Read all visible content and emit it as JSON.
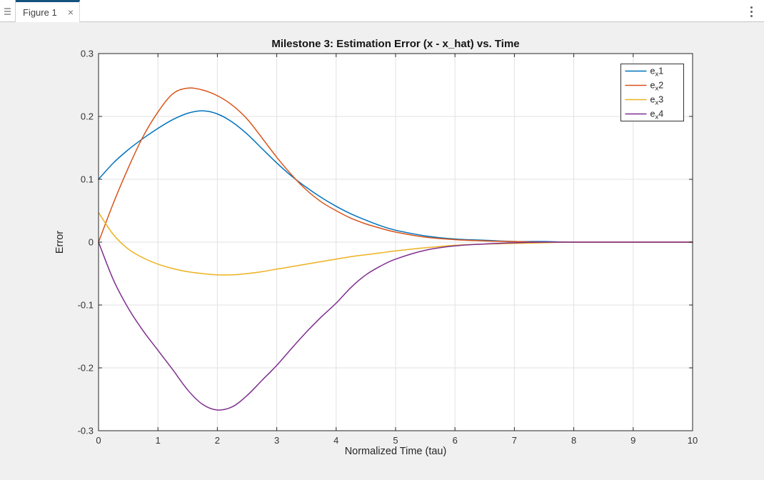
{
  "window": {
    "tab_title": "Figure 1",
    "close_glyph": "×",
    "panel_handle_icon": "panel-handle",
    "menu_icon": "kebab-menu"
  },
  "colors": {
    "tab_accent": "#15517d",
    "figure_background": "#f0f0f0",
    "axes_background": "#ffffff",
    "axis_color": "#262626",
    "grid_color": "#e2e2e2"
  },
  "chart_data": {
    "type": "line",
    "title": "Milestone 3: Estimation Error (x - x_hat) vs. Time",
    "xlabel": "Normalized Time (tau)",
    "ylabel": "Error",
    "xlim": [
      0,
      10
    ],
    "ylim": [
      -0.3,
      0.3
    ],
    "xtick_values": [
      0,
      1,
      2,
      3,
      4,
      5,
      6,
      7,
      8,
      9,
      10
    ],
    "xtick_labels": [
      "0",
      "1",
      "2",
      "3",
      "4",
      "5",
      "6",
      "7",
      "8",
      "9",
      "10"
    ],
    "ytick_values": [
      0.3,
      0.2,
      0.1,
      0,
      -0.1,
      -0.2,
      -0.3
    ],
    "ytick_labels": [
      "0.3",
      "0.2",
      "0.1",
      "0",
      "-0.1",
      "-0.2",
      "-0.3"
    ],
    "grid": true,
    "legend_position": "top-right",
    "x": [
      0,
      0.25,
      0.5,
      0.75,
      1,
      1.25,
      1.5,
      1.75,
      2,
      2.25,
      2.5,
      2.75,
      3,
      3.25,
      3.5,
      3.75,
      4,
      4.25,
      4.5,
      4.75,
      5,
      5.5,
      6,
      6.5,
      7,
      7.5,
      8,
      9,
      10
    ],
    "series": [
      {
        "name": "e_x1",
        "color": "#0072BD",
        "values": [
          0.1,
          0.126,
          0.147,
          0.165,
          0.181,
          0.195,
          0.205,
          0.209,
          0.204,
          0.191,
          0.172,
          0.149,
          0.126,
          0.105,
          0.087,
          0.071,
          0.057,
          0.045,
          0.035,
          0.026,
          0.019,
          0.01,
          0.005,
          0.003,
          0.001,
          0.001,
          0.0,
          0.0,
          0.0
        ]
      },
      {
        "name": "e_x2",
        "color": "#D95319",
        "values": [
          0.0,
          0.062,
          0.118,
          0.168,
          0.207,
          0.236,
          0.245,
          0.242,
          0.233,
          0.218,
          0.196,
          0.166,
          0.135,
          0.107,
          0.083,
          0.064,
          0.05,
          0.038,
          0.029,
          0.022,
          0.016,
          0.008,
          0.004,
          0.002,
          0.001,
          0.0,
          0.0,
          0.0,
          0.0
        ]
      },
      {
        "name": "e_x3",
        "color": "#EDB120",
        "values": [
          0.047,
          0.012,
          -0.011,
          -0.025,
          -0.035,
          -0.042,
          -0.047,
          -0.05,
          -0.052,
          -0.052,
          -0.05,
          -0.047,
          -0.043,
          -0.039,
          -0.035,
          -0.031,
          -0.027,
          -0.023,
          -0.02,
          -0.017,
          -0.014,
          -0.009,
          -0.005,
          -0.003,
          -0.002,
          -0.001,
          0.0,
          0.0,
          0.0
        ]
      },
      {
        "name": "e_x4",
        "color": "#7E2F8E",
        "values": [
          0.0,
          -0.06,
          -0.105,
          -0.141,
          -0.172,
          -0.203,
          -0.235,
          -0.258,
          -0.267,
          -0.262,
          -0.244,
          -0.22,
          -0.196,
          -0.169,
          -0.143,
          -0.119,
          -0.097,
          -0.072,
          -0.052,
          -0.038,
          -0.027,
          -0.013,
          -0.006,
          -0.003,
          -0.001,
          0.0,
          0.0,
          0.0,
          0.0
        ]
      }
    ],
    "legend_entries": [
      {
        "prefix": "e",
        "subscript": "x",
        "suffix": "1",
        "color": "#0072BD"
      },
      {
        "prefix": "e",
        "subscript": "x",
        "suffix": "2",
        "color": "#D95319"
      },
      {
        "prefix": "e",
        "subscript": "x",
        "suffix": "3",
        "color": "#EDB120"
      },
      {
        "prefix": "e",
        "subscript": "x",
        "suffix": "4",
        "color": "#7E2F8E"
      }
    ]
  }
}
